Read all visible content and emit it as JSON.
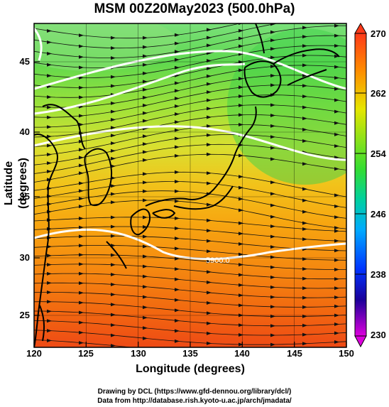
{
  "title": "MSM 00Z20May2023 (500.0hPa)",
  "axes": {
    "xlabel": "Longitude (degrees)",
    "ylabel": "Latitude  (degrees)",
    "x_ticks": [
      "120",
      "125",
      "130",
      "135",
      "140",
      "145",
      "150"
    ],
    "y_ticks": [
      "45",
      "40",
      "35",
      "30",
      "25"
    ]
  },
  "colorbar": {
    "ticks": [
      "270",
      "262",
      "254",
      "246",
      "238",
      "230"
    ],
    "colors": [
      "#ff3a1a",
      "#ff8a00",
      "#e6e600",
      "#33dd33",
      "#00d0a0",
      "#00aaff",
      "#0033ff",
      "#1a0099",
      "#dd00dd"
    ]
  },
  "contour_labels": [
    "5900.0"
  ],
  "credits": {
    "line1": "Drawing by DCL (https://www.gfd-dennou.org/library/dcl/)",
    "line2": "Data from http://database.rish.kyoto-u.ac.jp/arch/jmadata/"
  },
  "chart_data": {
    "type": "heatmap",
    "title": "MSM 00Z20May2023 (500.0hPa)",
    "xlabel": "Longitude (degrees)",
    "ylabel": "Latitude  (degrees)",
    "xlim": [
      120,
      150
    ],
    "ylim": [
      22.4,
      47.6
    ],
    "colorbar_range": [
      230,
      270
    ],
    "colorbar_ticks": [
      270,
      262,
      254,
      246,
      238,
      230
    ],
    "grid": true,
    "overlays": [
      "streamlines",
      "geopotential-height-contours",
      "coastlines"
    ]
  }
}
